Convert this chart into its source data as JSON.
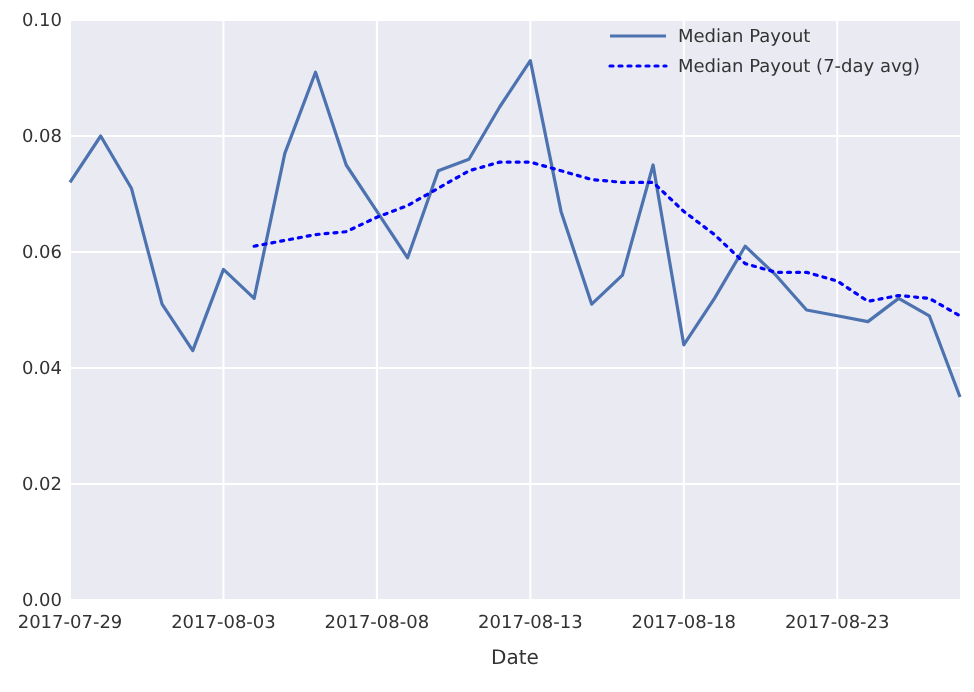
{
  "chart_data": {
    "type": "line",
    "xlabel": "Date",
    "x": [
      "2017-07-29",
      "2017-07-30",
      "2017-07-31",
      "2017-08-01",
      "2017-08-02",
      "2017-08-03",
      "2017-08-04",
      "2017-08-05",
      "2017-08-06",
      "2017-08-07",
      "2017-08-08",
      "2017-08-09",
      "2017-08-10",
      "2017-08-11",
      "2017-08-12",
      "2017-08-13",
      "2017-08-14",
      "2017-08-15",
      "2017-08-16",
      "2017-08-17",
      "2017-08-18",
      "2017-08-19",
      "2017-08-20",
      "2017-08-21",
      "2017-08-22",
      "2017-08-23",
      "2017-08-24",
      "2017-08-25",
      "2017-08-26",
      "2017-08-27"
    ],
    "series": [
      {
        "name": "Median Payout",
        "color": "#4c72b0",
        "line_style": "solid",
        "values": [
          0.072,
          0.08,
          0.071,
          0.051,
          0.043,
          0.057,
          0.052,
          0.077,
          0.091,
          0.075,
          0.067,
          0.059,
          0.074,
          0.076,
          0.085,
          0.093,
          0.067,
          0.051,
          0.056,
          0.075,
          0.044,
          0.052,
          0.061,
          0.056,
          0.05,
          0.049,
          0.048,
          0.052,
          0.049,
          0.035
        ]
      },
      {
        "name": "Median Payout (7-day avg)",
        "color": "#0000ff",
        "line_style": "dotted",
        "values": [
          null,
          null,
          null,
          null,
          null,
          null,
          0.061,
          0.062,
          0.063,
          0.0635,
          0.066,
          0.068,
          0.071,
          0.074,
          0.0755,
          0.0755,
          0.074,
          0.0725,
          0.072,
          0.072,
          0.067,
          0.063,
          0.058,
          0.0565,
          0.0565,
          0.055,
          0.0515,
          0.0525,
          0.052,
          0.049
        ]
      }
    ],
    "xlim": [
      "2017-07-29",
      "2017-08-27"
    ],
    "xticks": [
      "2017-07-29",
      "2017-08-03",
      "2017-08-08",
      "2017-08-13",
      "2017-08-18",
      "2017-08-23"
    ],
    "ylim": [
      0,
      0.1
    ],
    "yticks": [
      {
        "value": 0,
        "label": "0.00"
      },
      {
        "value": 0.02,
        "label": "0.02"
      },
      {
        "value": 0.04,
        "label": "0.04"
      },
      {
        "value": 0.06,
        "label": "0.06"
      },
      {
        "value": 0.08,
        "label": "0.08"
      },
      {
        "value": 0.1,
        "label": "0.10"
      }
    ],
    "grid": true,
    "legend": "top right",
    "marker": "none"
  }
}
